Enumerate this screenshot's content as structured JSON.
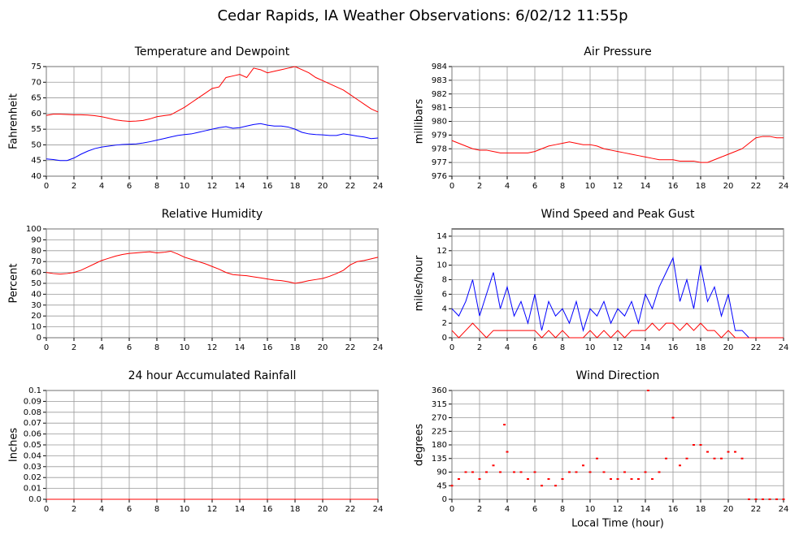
{
  "title": "Cedar Rapids, IA Weather Observations: 6/02/12 11:55p",
  "chart_data": [
    {
      "type": "line",
      "title": "Temperature and Dewpoint",
      "ylabel": "Fahrenheit",
      "x": [
        0,
        0.5,
        1,
        1.5,
        2,
        2.5,
        3,
        3.5,
        4,
        4.5,
        5,
        5.5,
        6,
        6.5,
        7,
        7.5,
        8,
        8.5,
        9,
        9.5,
        10,
        10.5,
        11,
        11.5,
        12,
        12.5,
        13,
        13.5,
        14,
        14.5,
        15,
        15.5,
        16,
        16.5,
        17,
        17.5,
        18,
        18.5,
        19,
        19.5,
        20,
        20.5,
        21,
        21.5,
        22,
        22.5,
        23,
        23.5,
        24
      ],
      "series": [
        {
          "color": "#ff0000",
          "values": [
            59.4,
            59.8,
            59.8,
            59.7,
            59.6,
            59.6,
            59.5,
            59.3,
            59.0,
            58.5,
            58.0,
            57.7,
            57.5,
            57.6,
            57.8,
            58.3,
            59.0,
            59.3,
            59.6,
            60.8,
            62.0,
            63.5,
            65.0,
            66.5,
            68.0,
            68.5,
            71.5,
            72.0,
            72.5,
            71.5,
            74.5,
            74.0,
            73.0,
            73.5,
            74.0,
            74.5,
            75.0,
            74.0,
            73.0,
            71.5,
            70.5,
            69.5,
            68.5,
            67.5,
            66.0,
            64.5,
            63.0,
            61.5,
            60.5
          ]
        },
        {
          "color": "#0000ff",
          "values": [
            45.5,
            45.3,
            45,
            45,
            45.8,
            47,
            48,
            48.8,
            49.3,
            49.6,
            49.9,
            50.1,
            50.2,
            50.3,
            50.6,
            51,
            51.5,
            52,
            52.5,
            53,
            53.3,
            53.5,
            54,
            54.5,
            55,
            55.5,
            55.8,
            55.3,
            55.5,
            56,
            56.5,
            56.8,
            56.3,
            56,
            56,
            55.7,
            55,
            54,
            53.5,
            53.3,
            53.2,
            53,
            53,
            53.5,
            53.2,
            52.8,
            52.5,
            52,
            52.2
          ]
        }
      ],
      "xlim": [
        0,
        24
      ],
      "xticks": [
        0,
        2,
        4,
        6,
        8,
        10,
        12,
        14,
        16,
        18,
        20,
        22,
        24
      ],
      "ylim": [
        40,
        75
      ],
      "yticks": [
        40,
        45,
        50,
        55,
        60,
        65,
        70,
        75
      ],
      "grid": true
    },
    {
      "type": "line",
      "title": "Air Pressure",
      "ylabel": "millibars",
      "x": [
        0,
        0.5,
        1,
        1.5,
        2,
        2.5,
        3,
        3.5,
        4,
        4.5,
        5,
        5.5,
        6,
        6.5,
        7,
        7.5,
        8,
        8.5,
        9,
        9.5,
        10,
        10.5,
        11,
        11.5,
        12,
        12.5,
        13,
        13.5,
        14,
        14.5,
        15,
        15.5,
        16,
        16.5,
        17,
        17.5,
        18,
        18.5,
        19,
        19.5,
        20,
        20.5,
        21,
        21.5,
        22,
        22.5,
        23,
        23.5,
        24
      ],
      "series": [
        {
          "color": "#ff0000",
          "values": [
            978.6,
            978.4,
            978.2,
            978,
            977.9,
            977.9,
            977.8,
            977.7,
            977.7,
            977.7,
            977.7,
            977.7,
            977.8,
            978,
            978.2,
            978.3,
            978.4,
            978.5,
            978.4,
            978.3,
            978.3,
            978.2,
            978,
            977.9,
            977.8,
            977.7,
            977.6,
            977.5,
            977.4,
            977.3,
            977.2,
            977.2,
            977.2,
            977.1,
            977.1,
            977.1,
            977,
            977,
            977.2,
            977.4,
            977.6,
            977.8,
            978,
            978.4,
            978.8,
            978.9,
            978.9,
            978.8,
            978.8
          ]
        }
      ],
      "xlim": [
        0,
        24
      ],
      "xticks": [
        0,
        2,
        4,
        6,
        8,
        10,
        12,
        14,
        16,
        18,
        20,
        22,
        24
      ],
      "ylim": [
        976,
        984
      ],
      "yticks": [
        976,
        977,
        978,
        979,
        980,
        981,
        982,
        983,
        984
      ],
      "grid": true
    },
    {
      "type": "line",
      "title": "Relative Humidity",
      "ylabel": "Percent",
      "x": [
        0,
        0.5,
        1,
        1.5,
        2,
        2.5,
        3,
        3.5,
        4,
        4.5,
        5,
        5.5,
        6,
        6.5,
        7,
        7.5,
        8,
        8.5,
        9,
        9.5,
        10,
        10.5,
        11,
        11.5,
        12,
        12.5,
        13,
        13.5,
        14,
        14.5,
        15,
        15.5,
        16,
        16.5,
        17,
        17.5,
        18,
        18.5,
        19,
        19.5,
        20,
        20.5,
        21,
        21.5,
        22,
        22.5,
        23,
        23.5,
        24
      ],
      "series": [
        {
          "color": "#ff0000",
          "values": [
            60,
            59,
            58.5,
            59,
            60,
            62,
            65,
            68,
            71,
            73,
            75,
            76.5,
            77.5,
            78,
            78.5,
            79,
            78,
            78.5,
            79.5,
            77,
            74,
            72,
            70,
            68,
            65.5,
            63,
            60,
            58,
            57.5,
            57,
            56,
            55,
            54,
            53,
            52.5,
            51.5,
            50,
            51,
            52.5,
            53.5,
            54.5,
            56.5,
            59,
            62,
            67,
            70,
            71,
            72.5,
            74
          ]
        }
      ],
      "xlim": [
        0,
        24
      ],
      "xticks": [
        0,
        2,
        4,
        6,
        8,
        10,
        12,
        14,
        16,
        18,
        20,
        22,
        24
      ],
      "ylim": [
        0,
        100
      ],
      "yticks": [
        0,
        10,
        20,
        30,
        40,
        50,
        60,
        70,
        80,
        90,
        100
      ],
      "grid": true
    },
    {
      "type": "line",
      "title": "Wind Speed and Peak Gust",
      "ylabel": "miles/hour",
      "x": [
        0,
        0.5,
        1,
        1.5,
        2,
        2.5,
        3,
        3.5,
        4,
        4.5,
        5,
        5.5,
        6,
        6.5,
        7,
        7.5,
        8,
        8.5,
        9,
        9.5,
        10,
        10.5,
        11,
        11.5,
        12,
        12.5,
        13,
        13.5,
        14,
        14.5,
        15,
        15.5,
        16,
        16.5,
        17,
        17.5,
        18,
        18.5,
        19,
        19.5,
        20,
        20.5,
        21,
        21.5,
        22,
        22.5,
        23,
        23.5,
        24
      ],
      "series": [
        {
          "color": "#0000ff",
          "values": [
            4,
            3,
            5,
            8,
            3,
            6,
            9,
            4,
            7,
            3,
            5,
            2,
            6,
            1,
            5,
            3,
            4,
            2,
            5,
            1,
            4,
            3,
            5,
            2,
            4,
            3,
            5,
            2,
            6,
            4,
            7,
            9,
            11,
            5,
            8,
            4,
            10,
            5,
            7,
            3,
            6,
            1,
            1,
            0,
            0,
            0,
            0,
            0,
            0
          ]
        },
        {
          "color": "#ff0000",
          "values": [
            1,
            0,
            1,
            2,
            1,
            0,
            1,
            1,
            1,
            1,
            1,
            1,
            1,
            0,
            1,
            0,
            1,
            0,
            0,
            0,
            1,
            0,
            1,
            0,
            1,
            0,
            1,
            1,
            1,
            2,
            1,
            2,
            2,
            1,
            2,
            1,
            2,
            1,
            1,
            0,
            1,
            0,
            0,
            0,
            0,
            0,
            0,
            0,
            0
          ]
        }
      ],
      "xlim": [
        0,
        24
      ],
      "xticks": [
        0,
        2,
        4,
        6,
        8,
        10,
        12,
        14,
        16,
        18,
        20,
        22,
        24
      ],
      "ylim": [
        0,
        15
      ],
      "yticks": [
        0,
        2,
        4,
        6,
        8,
        10,
        12,
        14
      ],
      "grid": true
    },
    {
      "type": "line",
      "title": "24 hour Accumulated Rainfall",
      "ylabel": "Inches",
      "x": [
        0,
        24
      ],
      "series": [
        {
          "color": "#ff0000",
          "values": [
            0,
            0
          ]
        }
      ],
      "xlim": [
        0,
        24
      ],
      "xticks": [
        0,
        2,
        4,
        6,
        8,
        10,
        12,
        14,
        16,
        18,
        20,
        22,
        24
      ],
      "ylim": [
        0,
        0.1
      ],
      "yticks": [
        {
          "value": 0,
          "label": "0.0"
        },
        0.01,
        0.02,
        0.03,
        0.04,
        0.05,
        0.06,
        0.07,
        0.08,
        0.09,
        0.1
      ],
      "grid": true
    },
    {
      "type": "scatter",
      "title": "Wind Direction",
      "ylabel": "degrees",
      "xlabel": "Local Time (hour)",
      "x": [
        0,
        0.5,
        1,
        1.5,
        2,
        2.5,
        3,
        3.5,
        3.8,
        4,
        4.5,
        5,
        5.5,
        6,
        6.5,
        7,
        7.5,
        8,
        8.5,
        9,
        9.5,
        10,
        10.5,
        11,
        11.5,
        12,
        12.5,
        13,
        13.5,
        14,
        14.2,
        14.5,
        15,
        15.5,
        16,
        16.5,
        17,
        17.5,
        18,
        18.5,
        19,
        19.5,
        20,
        20.5,
        21,
        21.5,
        22,
        22.5,
        23,
        23.5,
        24
      ],
      "series": [
        {
          "color": "#ff0000",
          "values": [
            45,
            67,
            90,
            90,
            67,
            90,
            112,
            90,
            247,
            157,
            90,
            90,
            67,
            90,
            45,
            67,
            45,
            67,
            90,
            90,
            112,
            90,
            135,
            90,
            67,
            67,
            90,
            67,
            67,
            90,
            360,
            67,
            90,
            135,
            270,
            112,
            135,
            180,
            180,
            157,
            135,
            135,
            157,
            157,
            135,
            0,
            0,
            0,
            0,
            0,
            0
          ]
        }
      ],
      "xlim": [
        0,
        24
      ],
      "xticks": [
        0,
        2,
        4,
        6,
        8,
        10,
        12,
        14,
        16,
        18,
        20,
        22,
        24
      ],
      "ylim": [
        0,
        360
      ],
      "yticks": [
        0,
        45,
        90,
        135,
        180,
        225,
        270,
        315,
        360
      ],
      "grid": true
    }
  ]
}
